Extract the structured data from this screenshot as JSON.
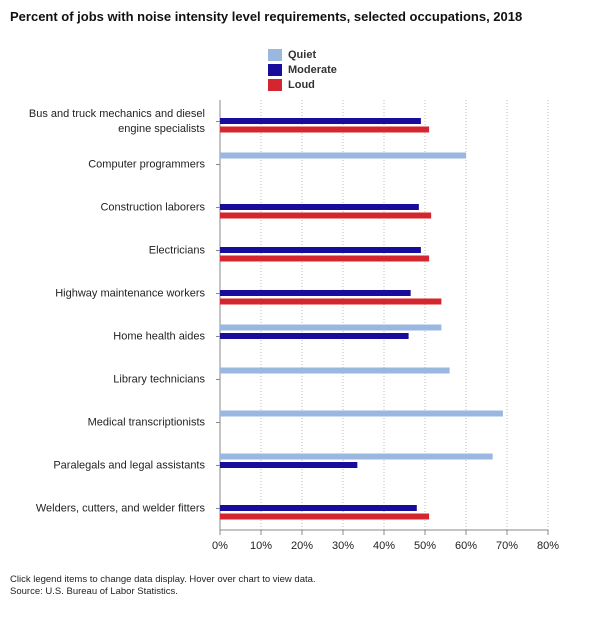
{
  "chart_data": {
    "type": "hbar",
    "title": "Percent of jobs with noise intensity level requirements, selected occupations, 2018",
    "categories": [
      "Bus and truck mechanics and diesel engine specialists",
      "Computer programmers",
      "Construction laborers",
      "Electricians",
      "Highway maintenance workers",
      "Home health aides",
      "Library technicians",
      "Medical transcriptionists",
      "Paralegals and legal assistants",
      "Welders, cutters, and welder fitters"
    ],
    "series": [
      {
        "name": "Quiet",
        "color": "#9ab7e0",
        "values": [
          null,
          60,
          null,
          null,
          null,
          54,
          56,
          69,
          66.5,
          null
        ]
      },
      {
        "name": "Moderate",
        "color": "#170c9c",
        "values": [
          49,
          null,
          48.5,
          49,
          46.5,
          46,
          null,
          null,
          33.5,
          48
        ]
      },
      {
        "name": "Loud",
        "color": "#d4262e",
        "values": [
          51,
          null,
          51.5,
          51,
          54,
          null,
          null,
          null,
          null,
          51
        ]
      }
    ],
    "xlim": [
      0,
      80
    ],
    "xticks": [
      {
        "value": 0,
        "label": "0%"
      },
      {
        "value": 10,
        "label": "10%"
      },
      {
        "value": 20,
        "label": "20%"
      },
      {
        "value": 30,
        "label": "30%"
      },
      {
        "value": 40,
        "label": "40%"
      },
      {
        "value": 50,
        "label": "50%"
      },
      {
        "value": 60,
        "label": "60%"
      },
      {
        "value": 70,
        "label": "70%"
      },
      {
        "value": 80,
        "label": "80%"
      }
    ],
    "grid": true,
    "notes": [
      "Click legend items to change data display. Hover over chart to view data.",
      "Source: U.S. Bureau of Labor Statistics."
    ]
  }
}
